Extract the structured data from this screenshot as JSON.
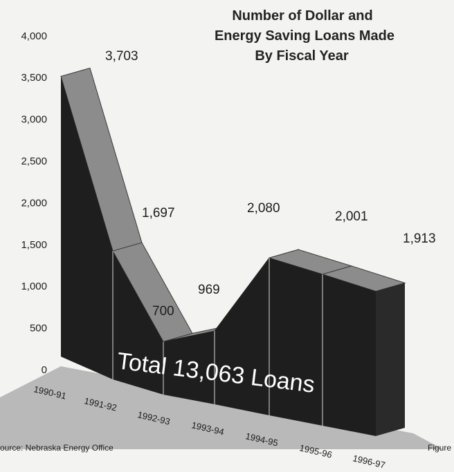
{
  "chart_data": {
    "type": "area",
    "title_lines": [
      "Number of Dollar and",
      "Energy Saving Loans Made",
      "By Fiscal Year"
    ],
    "categories": [
      "1990-91",
      "1991-92",
      "1992-93",
      "1993-94",
      "1994-95",
      "1995-96",
      "1996-97"
    ],
    "values": [
      3703,
      1697,
      700,
      969,
      2080,
      2001,
      1913
    ],
    "value_labels": [
      "3,703",
      "1,697",
      "700",
      "969",
      "2,080",
      "2,001",
      "1,913"
    ],
    "y_ticks": [
      "0",
      "500",
      "1,000",
      "1,500",
      "2,000",
      "2,500",
      "3,000",
      "3,500",
      "4,000"
    ],
    "ylim": [
      0,
      4000
    ],
    "annotation": "Total 13,063 Loans",
    "colors": {
      "front": "#1e1e1e",
      "top": "#8c8c8c",
      "floor": "#b9b9b9",
      "divider": "#d8d8d8"
    }
  },
  "footer": {
    "source": "ource: Nebraska Energy Office",
    "figure": "Figure"
  }
}
